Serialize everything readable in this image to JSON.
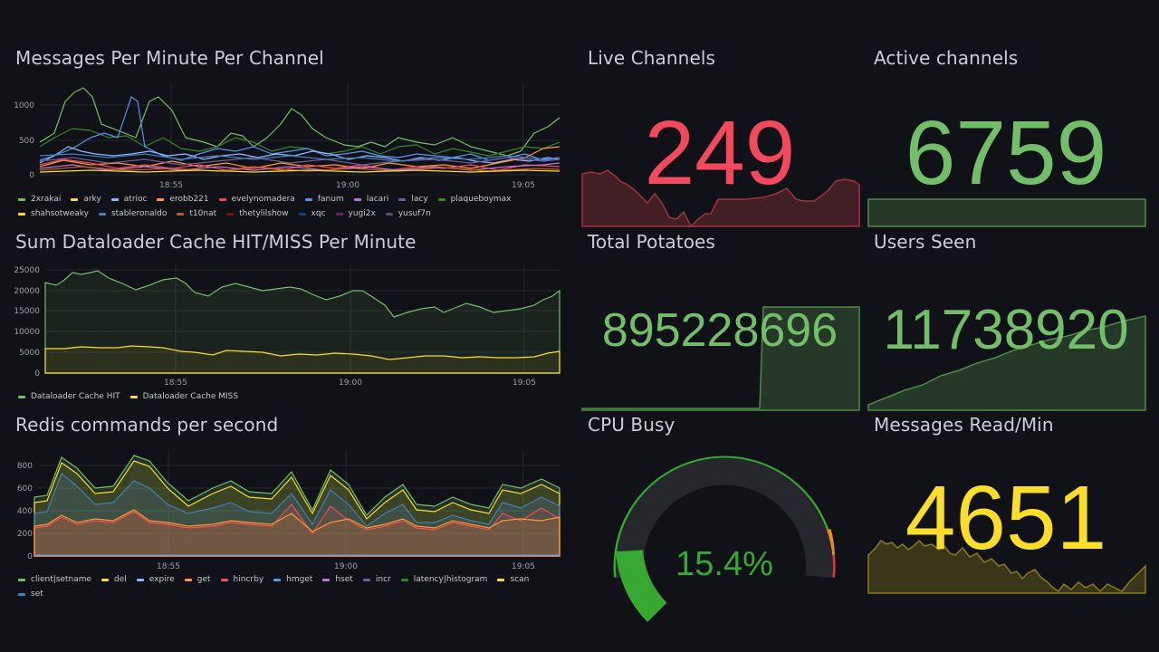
{
  "panels": {
    "messages": {
      "title": "Messages Per Minute Per Channel",
      "y_ticks": [
        "1000",
        "500",
        "0"
      ],
      "x_ticks": [
        "18:55",
        "19:00",
        "19:05"
      ],
      "legend": [
        {
          "name": "2xrakai",
          "color": "#73bf69"
        },
        {
          "name": "arky",
          "color": "#fade2a"
        },
        {
          "name": "atrioc",
          "color": "#8ab8ff"
        },
        {
          "name": "erobb221",
          "color": "#ff9830"
        },
        {
          "name": "evelynomadera",
          "color": "#f2495c"
        },
        {
          "name": "fanum",
          "color": "#5794f2"
        },
        {
          "name": "lacari",
          "color": "#b877d9"
        },
        {
          "name": "lacy",
          "color": "#705da0"
        },
        {
          "name": "plaqueboymax",
          "color": "#37872d"
        },
        {
          "name": "shahsotweaky",
          "color": "#fade2a"
        },
        {
          "name": "stableronaldo",
          "color": "#447ebc"
        },
        {
          "name": "t10nat",
          "color": "#c15c17"
        },
        {
          "name": "thetylilshow",
          "color": "#890f02"
        },
        {
          "name": "xqc",
          "color": "#0a437c"
        },
        {
          "name": "yugi2x",
          "color": "#6d1f62"
        },
        {
          "name": "yusuf7n",
          "color": "#584477"
        }
      ]
    },
    "dataloader": {
      "title": "Sum Dataloader Cache HIT/MISS Per Minute",
      "y_ticks": [
        "25000",
        "20000",
        "15000",
        "10000",
        "5000",
        "0"
      ],
      "x_ticks": [
        "18:55",
        "19:00",
        "19:05"
      ],
      "legend": [
        {
          "name": "Dataloader Cache HIT",
          "color": "#73bf69"
        },
        {
          "name": "Dataloader Cache MISS",
          "color": "#fade2a"
        }
      ]
    },
    "redis": {
      "title": "Redis commands per second",
      "y_ticks": [
        "800",
        "600",
        "400",
        "200",
        "0"
      ],
      "x_ticks": [
        "18:55",
        "19:00",
        "19:05"
      ],
      "legend": [
        {
          "name": "client|setname",
          "color": "#73bf69"
        },
        {
          "name": "del",
          "color": "#fade2a"
        },
        {
          "name": "expire",
          "color": "#8ab8ff"
        },
        {
          "name": "get",
          "color": "#ff9830"
        },
        {
          "name": "hincrby",
          "color": "#f2495c"
        },
        {
          "name": "hmget",
          "color": "#5794f2"
        },
        {
          "name": "hset",
          "color": "#b877d9"
        },
        {
          "name": "incr",
          "color": "#705da0"
        },
        {
          "name": "latency|histogram",
          "color": "#37872d"
        },
        {
          "name": "scan",
          "color": "#fade2a"
        },
        {
          "name": "set",
          "color": "#447ebc"
        }
      ]
    },
    "live_channels": {
      "title": "Live Channels",
      "value": "249",
      "color": "#f2495c"
    },
    "active_channels": {
      "title": "Active channels",
      "value": "6759",
      "color": "#73bf69"
    },
    "total_potatoes": {
      "title": "Total Potatoes",
      "value": "895228696",
      "color": "#73bf69"
    },
    "users_seen": {
      "title": "Users Seen",
      "value": "11738920",
      "color": "#73bf69"
    },
    "cpu_busy": {
      "title": "CPU Busy",
      "value": "15.4%",
      "percent": 15.4,
      "color": "#37a831"
    },
    "messages_read": {
      "title": "Messages Read/Min",
      "value": "4651",
      "color": "#fade2a"
    }
  }
}
